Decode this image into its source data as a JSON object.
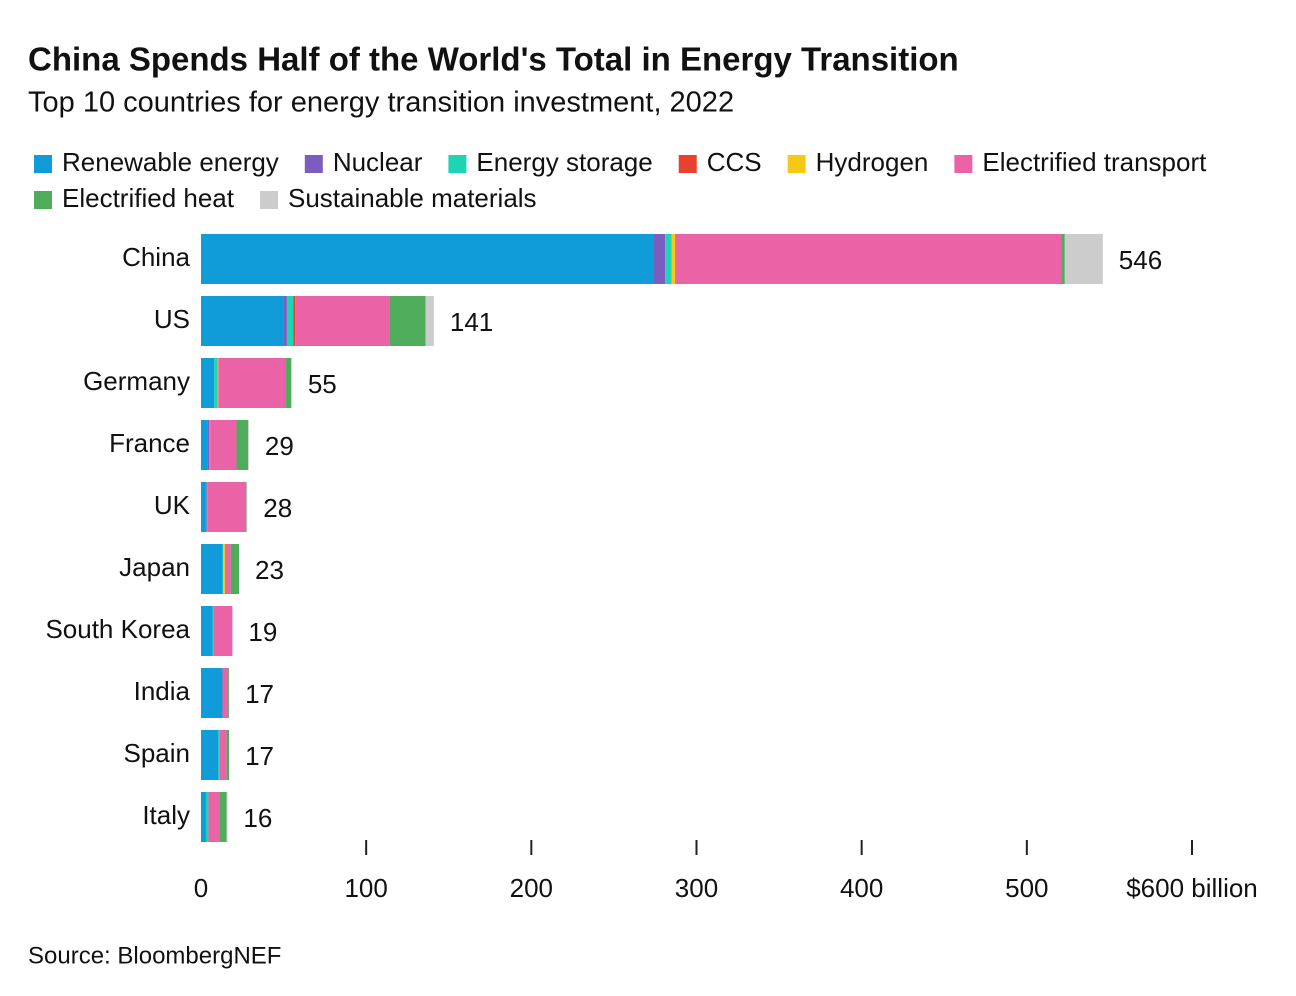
{
  "chart_data": {
    "type": "stacked-bar-horizontal",
    "title": "China Spends Half of the World's Total in Energy Transition",
    "subtitle": "Top 10 countries for energy transition investment, 2022",
    "source": "Source: BloombergNEF",
    "categories": [
      "China",
      "US",
      "Germany",
      "France",
      "UK",
      "Japan",
      "South Korea",
      "India",
      "Spain",
      "Italy"
    ],
    "totals": [
      546,
      141,
      55,
      29,
      28,
      23,
      19,
      17,
      17,
      16
    ],
    "series": [
      {
        "name": "Renewable energy",
        "color": "#0f9cd8",
        "values": [
          274,
          50,
          8,
          4,
          2.5,
          13,
          7,
          13,
          10.5,
          3
        ]
      },
      {
        "name": "Nuclear",
        "color": "#7c5cbf",
        "values": [
          7,
          2,
          0,
          1,
          1,
          0,
          0,
          0,
          0,
          0
        ]
      },
      {
        "name": "Energy storage",
        "color": "#1fd3b5",
        "values": [
          4,
          4,
          2,
          0.5,
          0.5,
          0.5,
          0.5,
          0,
          0.5,
          1.5
        ]
      },
      {
        "name": "CCS",
        "color": "#e8412f",
        "values": [
          0,
          1,
          0,
          0,
          0,
          0,
          0,
          0,
          0,
          0
        ]
      },
      {
        "name": "Hydrogen",
        "color": "#f6c915",
        "values": [
          2,
          0,
          0.5,
          0,
          0,
          1,
          0,
          0,
          0,
          0
        ]
      },
      {
        "name": "Electrified transport",
        "color": "#e963a6",
        "values": [
          234,
          57,
          41,
          16,
          23,
          3.5,
          11.5,
          3.5,
          4.5,
          7
        ]
      },
      {
        "name": "Electrified heat",
        "color": "#4eac5b",
        "values": [
          2,
          22,
          3,
          7,
          0.5,
          5,
          0,
          0.5,
          1.5,
          4
        ]
      },
      {
        "name": "Sustainable materials",
        "color": "#cccccc",
        "values": [
          23,
          5,
          0.5,
          0.5,
          0.5,
          0,
          0,
          0,
          0,
          0.5
        ]
      }
    ],
    "xlim": [
      0,
      600
    ],
    "xticks": [
      0,
      100,
      200,
      300,
      400,
      500,
      {
        "value": 600,
        "label": "$600 billion"
      }
    ]
  }
}
